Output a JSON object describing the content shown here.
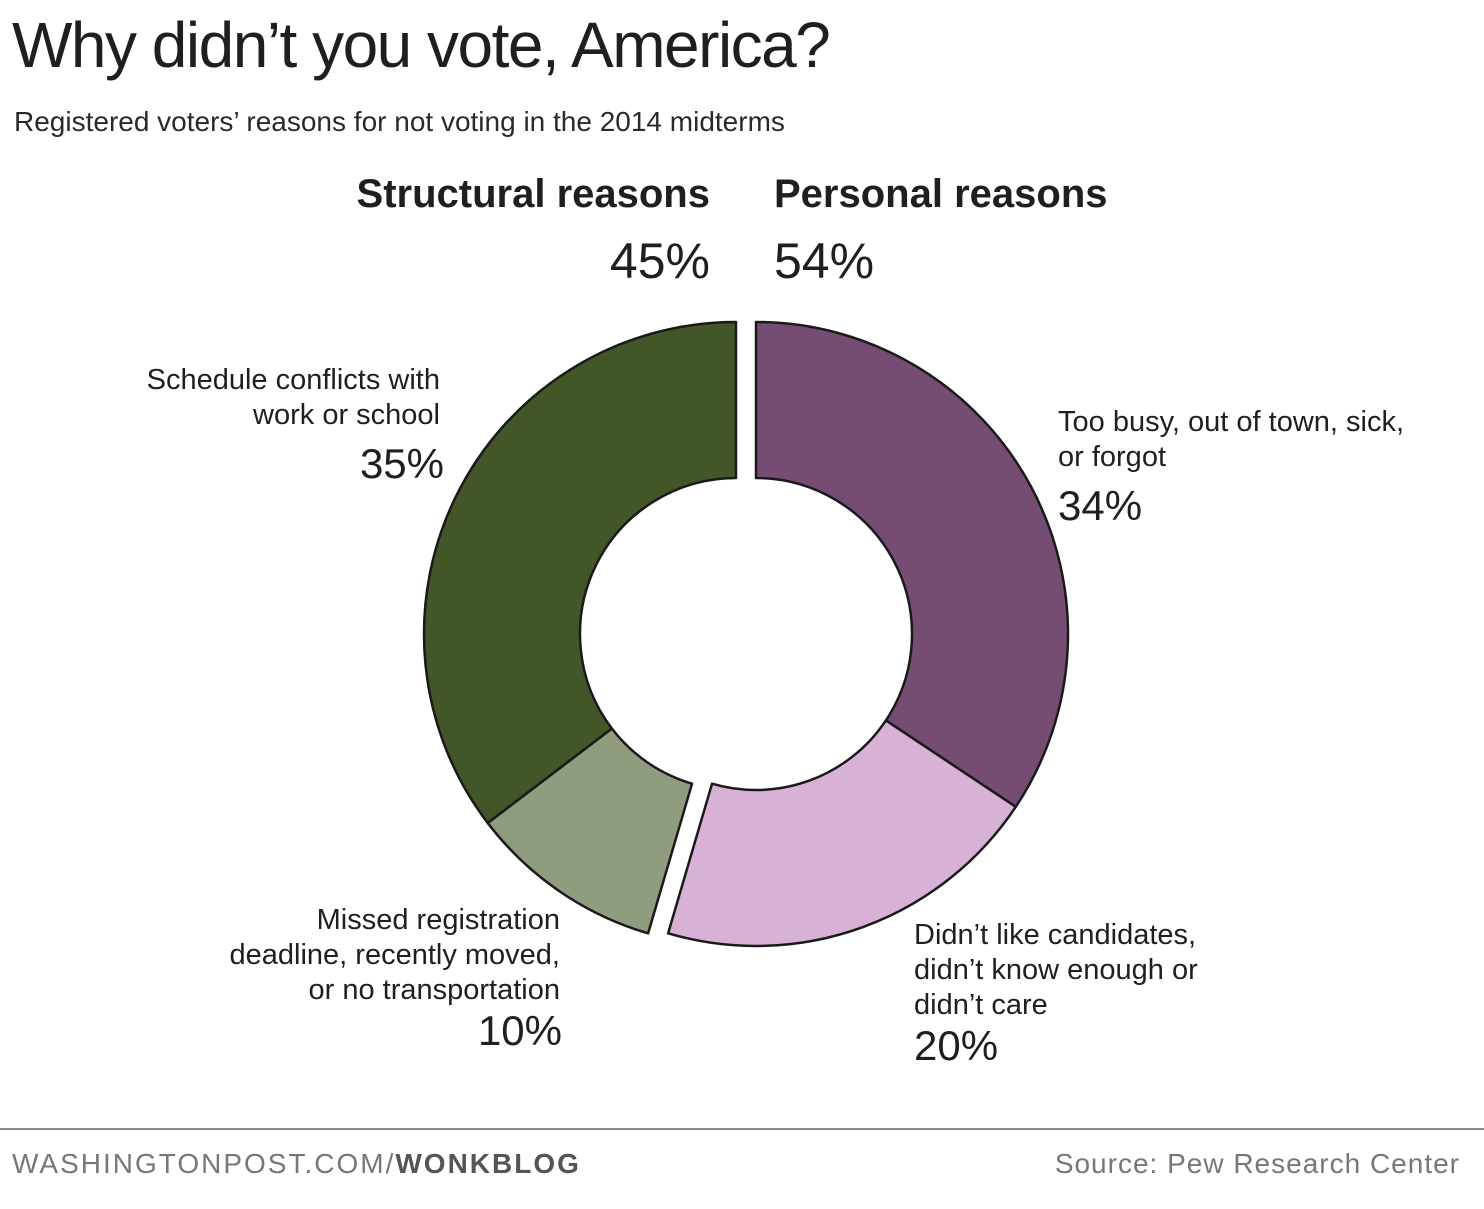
{
  "chart_data": {
    "type": "donut",
    "title": "Why didn’t you vote, America?",
    "subtitle": "Registered voters’ reasons for not voting in the 2014 midterms",
    "groups": [
      {
        "name": "Structural reasons",
        "value": 45,
        "value_label": "45%"
      },
      {
        "name": "Personal reasons",
        "value": 54,
        "value_label": "54%"
      }
    ],
    "slices": [
      {
        "group": "Personal reasons",
        "label": [
          "Too busy, out of town, sick,",
          "or forgot"
        ],
        "value": 34,
        "value_label": "34%",
        "color": "#754d73"
      },
      {
        "group": "Personal reasons",
        "label": [
          "Didn’t like candidates,",
          "didn’t know enough or",
          "didn’t care"
        ],
        "value": 20,
        "value_label": "20%",
        "color": "#d8b1d7"
      },
      {
        "group": "Structural reasons",
        "label": [
          "Missed registration",
          "deadline, recently moved,",
          "or no transportation"
        ],
        "value": 10,
        "value_label": "10%",
        "color": "#909c7e"
      },
      {
        "group": "Structural reasons",
        "label": [
          "Schedule conflicts with",
          "work or school"
        ],
        "value": 35,
        "value_label": "35%",
        "color": "#435628"
      }
    ]
  },
  "footer": {
    "site": "WASHINGTONPOST.COM/",
    "section": "WONKBLOG",
    "source": "Source: Pew Research Center"
  }
}
